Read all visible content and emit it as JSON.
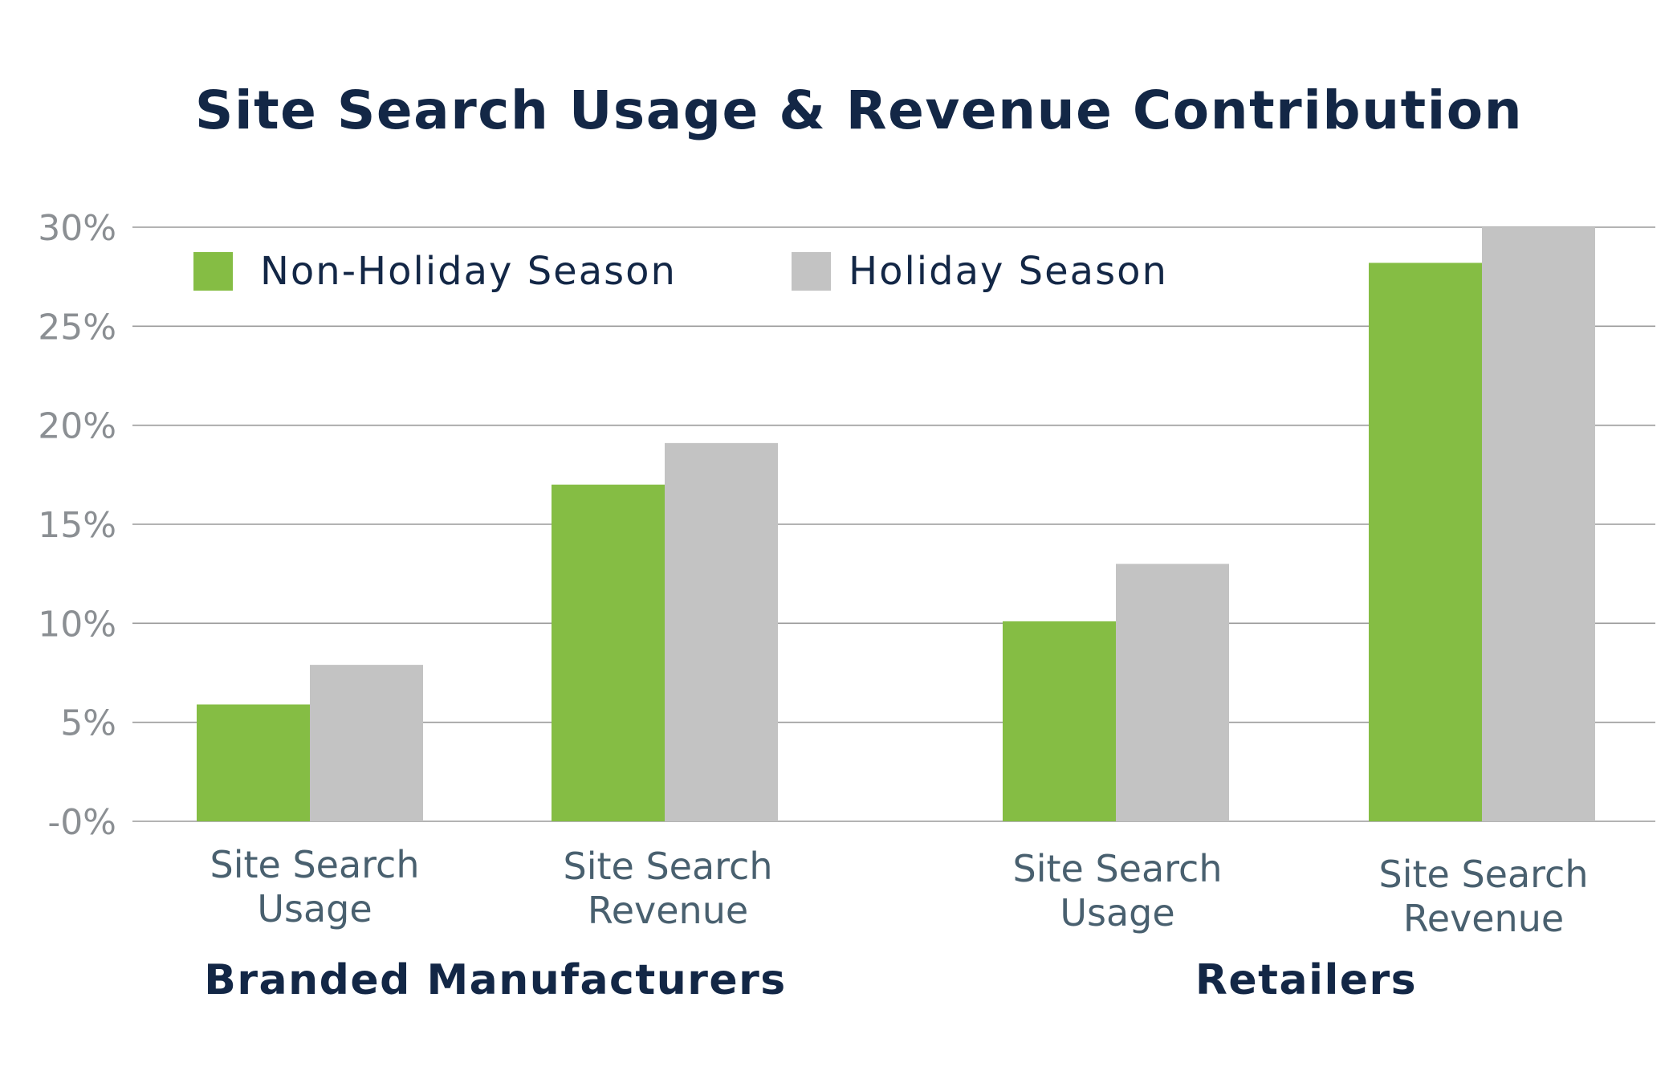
{
  "chart_data": {
    "type": "bar",
    "title": "Site Search Usage & Revenue Contribution",
    "xlabel": "",
    "ylabel": "",
    "ylim": [
      0,
      30
    ],
    "yticks": [
      {
        "value": 0,
        "label": "-0%"
      },
      {
        "value": 5,
        "label": "5%"
      },
      {
        "value": 10,
        "label": "10%"
      },
      {
        "value": 15,
        "label": "15%"
      },
      {
        "value": 20,
        "label": "20%"
      },
      {
        "value": 25,
        "label": "25%"
      },
      {
        "value": 30,
        "label": "30%"
      }
    ],
    "grid": true,
    "legend_position": "top-left",
    "groups": [
      {
        "label": "Branded Manufacturers",
        "categories": [
          {
            "line1": "Site Search",
            "line2": "Usage"
          },
          {
            "line1": "Site Search",
            "line2": "Revenue"
          }
        ]
      },
      {
        "label": "Retailers",
        "categories": [
          {
            "line1": "Site Search",
            "line2": "Usage"
          },
          {
            "line1": "Site Search",
            "line2": "Revenue"
          }
        ]
      }
    ],
    "series": [
      {
        "name": "Non-Holiday Season",
        "color": "#85bd44",
        "values": [
          5.9,
          17.0,
          10.1,
          28.2
        ]
      },
      {
        "name": "Holiday Season",
        "color": "#c3c3c3",
        "values": [
          7.9,
          19.1,
          13.0,
          30.0
        ]
      }
    ]
  }
}
